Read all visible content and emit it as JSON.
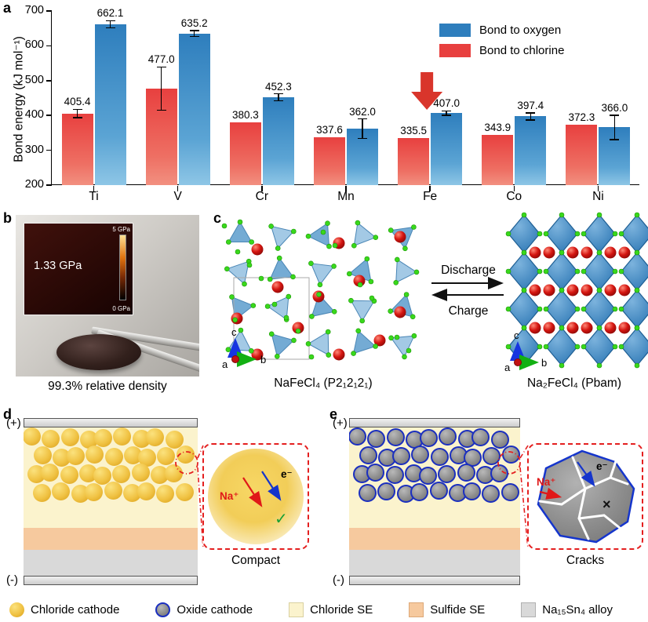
{
  "panel_labels": {
    "a": "a",
    "b": "b",
    "c": "c",
    "d": "d",
    "e": "e"
  },
  "chart_data": {
    "type": "bar",
    "title": "",
    "xlabel": "",
    "ylabel": "Bond energy (kJ mol⁻¹)",
    "ylim": [
      200,
      700
    ],
    "yticks": [
      200,
      300,
      400,
      500,
      600,
      700
    ],
    "grid": false,
    "legend_position": "top-right",
    "categories": [
      "Ti",
      "V",
      "Cr",
      "Mn",
      "Fe",
      "Co",
      "Ni"
    ],
    "series": [
      {
        "name": "Bond to chlorine",
        "color": "#e8403f",
        "values": [
          405.4,
          477.0,
          380.3,
          337.6,
          335.5,
          343.9,
          372.3
        ],
        "errors": [
          12,
          62,
          0,
          0,
          0,
          0,
          0
        ]
      },
      {
        "name": "Bond to oxygen",
        "color": "#2e7ebd",
        "values": [
          662.1,
          635.2,
          452.3,
          362.0,
          407.0,
          397.4,
          366.0
        ],
        "errors": [
          10,
          8,
          10,
          28,
          6,
          10,
          35
        ]
      }
    ],
    "legend": [
      {
        "label": "Bond to oxygen",
        "color": "#2e7ebd"
      },
      {
        "label": "Bond to chlorine",
        "color": "#e8403f"
      }
    ],
    "annotation": {
      "type": "down-arrow",
      "category": "Fe",
      "color": "#d9352b"
    }
  },
  "panel_b": {
    "inset_value": "1.33 GPa",
    "scale_max": "5 GPa",
    "scale_min": "0 GPa",
    "caption": "99.3% relative density"
  },
  "panel_c": {
    "left_formula": "NaFeCl₄ (P2₁2₁2₁)",
    "right_formula": "Na₂FeCl₄ (Pbam)",
    "forward": "Discharge",
    "backward": "Charge",
    "axis_a": "a",
    "axis_b": "b",
    "axis_c": "c"
  },
  "panel_d": {
    "top_electrode": "(+)",
    "bottom_electrode": "(-)",
    "ion": "Na⁺",
    "electron": "e⁻",
    "check": "✓",
    "caption": "Compact"
  },
  "panel_e": {
    "top_electrode": "(+)",
    "bottom_electrode": "(-)",
    "ion": "Na⁺",
    "electron": "e⁻",
    "cross": "×",
    "caption": "Cracks"
  },
  "legend": {
    "items": [
      {
        "icon": "chloride-cathode-icon",
        "label": "Chloride cathode"
      },
      {
        "icon": "oxide-cathode-icon",
        "label": "Oxide cathode"
      },
      {
        "icon": "chloride-se-icon",
        "label": "Chloride SE"
      },
      {
        "icon": "sulfide-se-icon",
        "label": "Sulfide SE"
      },
      {
        "icon": "alloy-icon",
        "label": "Na₁₅Sn₄ alloy"
      }
    ]
  },
  "colors": {
    "bond_oxygen": "#2e7ebd",
    "bond_chlorine": "#e8403f",
    "chloride_cathode": "#f0c243",
    "oxide_cathode": "#8b8b8b",
    "oxide_border": "#1b2fbf",
    "chloride_se": "#fbf3cd",
    "sulfide_se": "#f6c99e",
    "alloy": "#d9d9d9",
    "highlight_red": "#e41f1f",
    "ion_red": "#e01818",
    "electron_blue": "#1535cc",
    "check_green": "#18a035"
  }
}
